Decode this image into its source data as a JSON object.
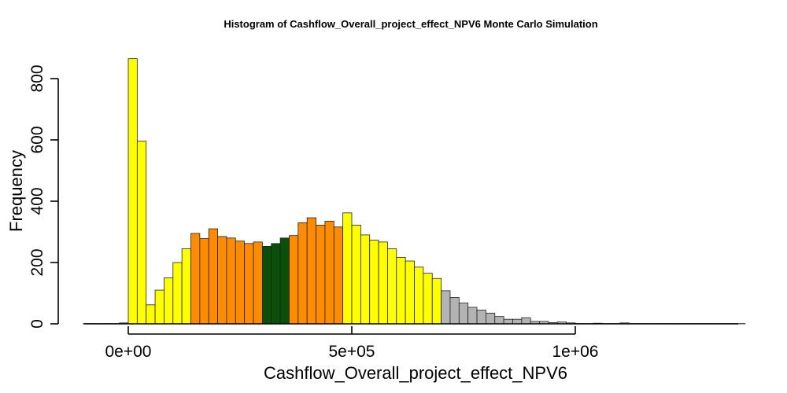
{
  "chart_data": {
    "type": "bar",
    "title": "Histogram of  Cashflow_Overall_project_effect_NPV6  Monte Carlo Simulation",
    "xlabel": "Cashflow_Overall_project_effect_NPV6",
    "ylabel": "Frequency",
    "xlim": [
      -100000,
      1370000
    ],
    "ylim": [
      0,
      880
    ],
    "bin_width": 20000,
    "bin_start": -100000,
    "x_ticks": [
      {
        "value": 0,
        "label": "0e+00"
      },
      {
        "value": 500000,
        "label": "5e+05"
      },
      {
        "value": 1000000,
        "label": "1e+06"
      }
    ],
    "y_ticks": [
      {
        "value": 0,
        "label": "0"
      },
      {
        "value": 200,
        "label": "200"
      },
      {
        "value": 400,
        "label": "400"
      },
      {
        "value": 600,
        "label": "600"
      },
      {
        "value": 800,
        "label": "800"
      }
    ],
    "colors": {
      "yellow": "#ffff00",
      "orange": "#ff8c00",
      "darkgreen": "#0a4f0a",
      "gray": "#b3b3b3"
    },
    "values": [
      1,
      1,
      1,
      1,
      3,
      865,
      596,
      62,
      110,
      150,
      200,
      245,
      295,
      278,
      310,
      285,
      280,
      270,
      262,
      267,
      253,
      262,
      280,
      288,
      330,
      346,
      322,
      335,
      316,
      362,
      322,
      290,
      273,
      267,
      245,
      217,
      205,
      185,
      165,
      148,
      108,
      86,
      68,
      54,
      45,
      35,
      24,
      15,
      15,
      20,
      8,
      8,
      4,
      6,
      3,
      1,
      1,
      2,
      1,
      1,
      3,
      1,
      1,
      1,
      1,
      1,
      1,
      1,
      1,
      1,
      1,
      1,
      1,
      1
    ],
    "bar_colors": [
      "gray",
      "gray",
      "gray",
      "gray",
      "gray",
      "yellow",
      "yellow",
      "yellow",
      "yellow",
      "yellow",
      "yellow",
      "yellow",
      "orange",
      "orange",
      "orange",
      "orange",
      "orange",
      "orange",
      "orange",
      "orange",
      "darkgreen",
      "darkgreen",
      "darkgreen",
      "orange",
      "orange",
      "orange",
      "orange",
      "orange",
      "orange",
      "yellow",
      "yellow",
      "yellow",
      "yellow",
      "yellow",
      "yellow",
      "yellow",
      "yellow",
      "yellow",
      "yellow",
      "yellow",
      "gray",
      "gray",
      "gray",
      "gray",
      "gray",
      "gray",
      "gray",
      "gray",
      "gray",
      "gray",
      "gray",
      "gray",
      "gray",
      "gray",
      "gray",
      "gray",
      "gray",
      "gray",
      "gray",
      "gray",
      "gray",
      "gray",
      "gray",
      "gray",
      "gray",
      "gray",
      "gray",
      "gray",
      "gray",
      "gray",
      "gray",
      "gray",
      "gray",
      "gray"
    ]
  }
}
